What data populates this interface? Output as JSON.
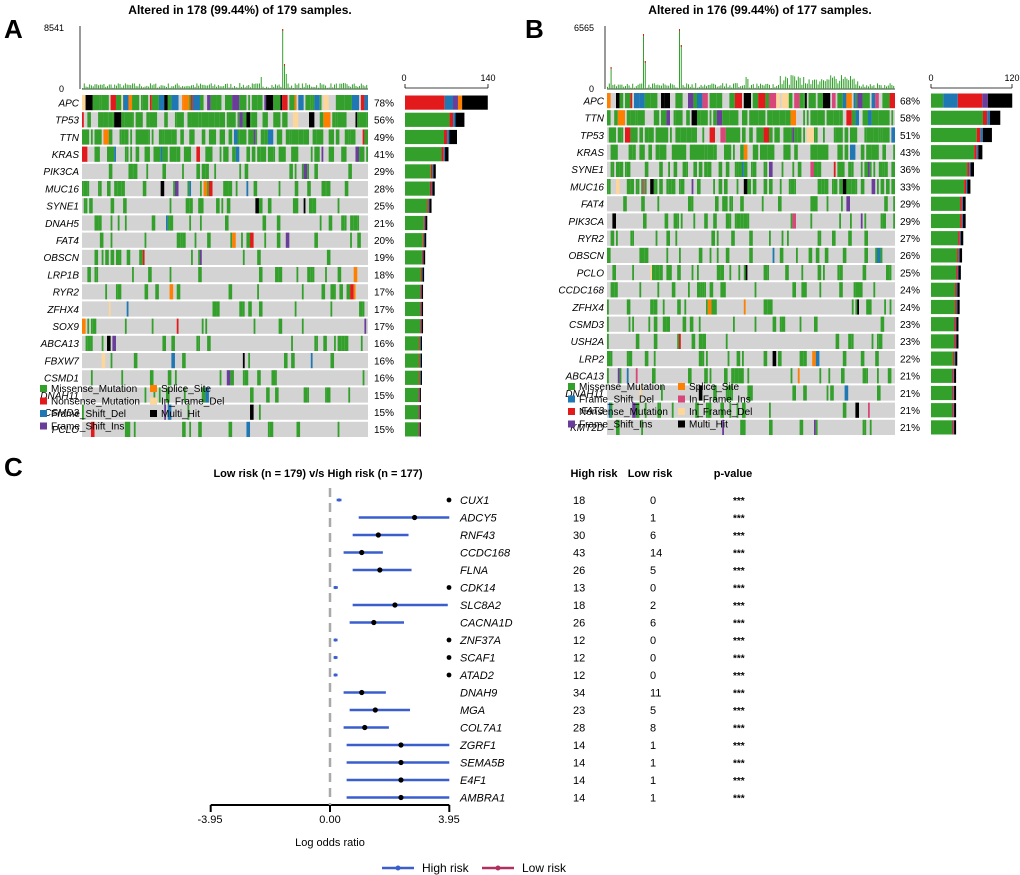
{
  "panel_labels": {
    "a": "A",
    "b": "B",
    "c": "C"
  },
  "colors": {
    "Missense_Mutation": "#33a02c",
    "Nonsense_Mutation": "#e31a1c",
    "Frame_Shift_Del": "#1f78b4",
    "Frame_Shift_Ins": "#6a3d9a",
    "Splice_Site": "#ff7f00",
    "In_Frame_Del": "#fdd79a",
    "In_Frame_Ins": "#d9467a",
    "Multi_Hit": "#000000",
    "no_mutation": "#d3d3d3",
    "forest_line": "#3a5fcd",
    "forest_low": "#b03060",
    "dashed_zero": "#a9a9a9"
  },
  "chart_data": [
    {
      "type": "oncoplot",
      "panel": "A",
      "title": "Altered in 178 (99.44%) of 179 samples.",
      "tmb_ylim": [
        0,
        8541
      ],
      "tmb_ticks": [
        "8541",
        "0"
      ],
      "bar_xlim": [
        0,
        140
      ],
      "bar_ticks": [
        "0",
        "140"
      ],
      "genes": [
        "APC",
        "TP53",
        "TTN",
        "KRAS",
        "PIK3CA",
        "MUC16",
        "SYNE1",
        "DNAH5",
        "FAT4",
        "OBSCN",
        "LRP1B",
        "RYR2",
        "ZFHX4",
        "SOX9",
        "ABCA13",
        "FBXW7",
        "CSMD1",
        "DNAH11",
        "CSMD3",
        "PCLO"
      ],
      "percents": [
        "78%",
        "56%",
        "49%",
        "41%",
        "29%",
        "28%",
        "25%",
        "21%",
        "20%",
        "19%",
        "18%",
        "17%",
        "17%",
        "17%",
        "16%",
        "16%",
        "16%",
        "15%",
        "15%",
        "15%"
      ],
      "legend": [
        "Missense_Mutation",
        "Splice_Site",
        "Nonsense_Mutation",
        "In_Frame_Del",
        "Frame_Shift_Del",
        "Multi_Hit",
        "Frame_Shift_Ins"
      ]
    },
    {
      "type": "oncoplot",
      "panel": "B",
      "title": "Altered in 176 (99.44%) of 177 samples.",
      "tmb_ylim": [
        0,
        6565
      ],
      "tmb_ticks": [
        "6565",
        "0"
      ],
      "bar_xlim": [
        0,
        120
      ],
      "bar_ticks": [
        "0",
        "120"
      ],
      "genes": [
        "APC",
        "TTN",
        "TP53",
        "KRAS",
        "SYNE1",
        "MUC16",
        "FAT4",
        "PIK3CA",
        "RYR2",
        "OBSCN",
        "PCLO",
        "CCDC168",
        "ZFHX4",
        "CSMD3",
        "USH2A",
        "LRP2",
        "ABCA13",
        "DNAH11",
        "FAT3",
        "KMT2D"
      ],
      "percents": [
        "68%",
        "58%",
        "51%",
        "43%",
        "36%",
        "33%",
        "29%",
        "29%",
        "27%",
        "26%",
        "25%",
        "24%",
        "24%",
        "23%",
        "23%",
        "22%",
        "21%",
        "21%",
        "21%",
        "21%"
      ],
      "legend": [
        "Missense_Mutation",
        "Splice_Site",
        "Frame_Shift_Del",
        "In_Frame_Ins",
        "Nonsense_Mutation",
        "In_Frame_Del",
        "Frame_Shift_Ins",
        "Multi_Hit"
      ]
    },
    {
      "type": "forest",
      "panel": "C",
      "title": "Low risk (n = 179) v/s High risk (n = 177)",
      "xlabel": "Log odds ratio",
      "xlim": [
        -3.95,
        3.95
      ],
      "xticks": [
        "-3.95",
        "0.00",
        "3.95"
      ],
      "col_headers": {
        "high": "High risk",
        "low": "Low risk",
        "p": "p-value"
      },
      "legend": {
        "high": "High risk",
        "low": "Low risk"
      },
      "rows": [
        {
          "gene": "CUX1",
          "high": "18",
          "low": "0",
          "p": "***",
          "or": 0.3,
          "lo": 0.22,
          "hi": 0.38,
          "dot": true
        },
        {
          "gene": "ADCY5",
          "high": "19",
          "low": "1",
          "p": "***",
          "or": 2.8,
          "lo": 0.95,
          "hi": 5.95,
          "dot": false
        },
        {
          "gene": "RNF43",
          "high": "30",
          "low": "6",
          "p": "***",
          "or": 1.6,
          "lo": 0.75,
          "hi": 2.6,
          "dot": false
        },
        {
          "gene": "CCDC168",
          "high": "43",
          "low": "14",
          "p": "***",
          "or": 1.05,
          "lo": 0.45,
          "hi": 1.75,
          "dot": false
        },
        {
          "gene": "FLNA",
          "high": "26",
          "low": "5",
          "p": "***",
          "or": 1.65,
          "lo": 0.75,
          "hi": 2.7,
          "dot": false
        },
        {
          "gene": "CDK14",
          "high": "13",
          "low": "0",
          "p": "***",
          "or": 0.18,
          "lo": 0.12,
          "hi": 0.26,
          "dot": true
        },
        {
          "gene": "SLC8A2",
          "high": "18",
          "low": "2",
          "p": "***",
          "or": 2.15,
          "lo": 0.75,
          "hi": 3.9,
          "dot": false
        },
        {
          "gene": "CACNA1D",
          "high": "26",
          "low": "6",
          "p": "***",
          "or": 1.45,
          "lo": 0.65,
          "hi": 2.45,
          "dot": false
        },
        {
          "gene": "ZNF37A",
          "high": "12",
          "low": "0",
          "p": "***",
          "or": 0.18,
          "lo": 0.12,
          "hi": 0.25,
          "dot": true
        },
        {
          "gene": "SCAF1",
          "high": "12",
          "low": "0",
          "p": "***",
          "or": 0.18,
          "lo": 0.12,
          "hi": 0.25,
          "dot": true
        },
        {
          "gene": "ATAD2",
          "high": "12",
          "low": "0",
          "p": "***",
          "or": 0.18,
          "lo": 0.12,
          "hi": 0.25,
          "dot": true
        },
        {
          "gene": "DNAH9",
          "high": "34",
          "low": "11",
          "p": "***",
          "or": 1.05,
          "lo": 0.45,
          "hi": 1.85,
          "dot": false
        },
        {
          "gene": "MGA",
          "high": "23",
          "low": "5",
          "p": "***",
          "or": 1.5,
          "lo": 0.65,
          "hi": 2.65,
          "dot": false
        },
        {
          "gene": "COL7A1",
          "high": "28",
          "low": "8",
          "p": "***",
          "or": 1.15,
          "lo": 0.45,
          "hi": 1.95,
          "dot": false
        },
        {
          "gene": "ZGRF1",
          "high": "14",
          "low": "1",
          "p": "***",
          "or": 2.35,
          "lo": 0.55,
          "hi": 5.75,
          "dot": false
        },
        {
          "gene": "SEMA5B",
          "high": "14",
          "low": "1",
          "p": "***",
          "or": 2.35,
          "lo": 0.55,
          "hi": 5.75,
          "dot": false
        },
        {
          "gene": "E4F1",
          "high": "14",
          "low": "1",
          "p": "***",
          "or": 2.35,
          "lo": 0.55,
          "hi": 5.75,
          "dot": false
        },
        {
          "gene": "AMBRA1",
          "high": "14",
          "low": "1",
          "p": "***",
          "or": 2.35,
          "lo": 0.55,
          "hi": 5.75,
          "dot": false
        }
      ]
    }
  ]
}
